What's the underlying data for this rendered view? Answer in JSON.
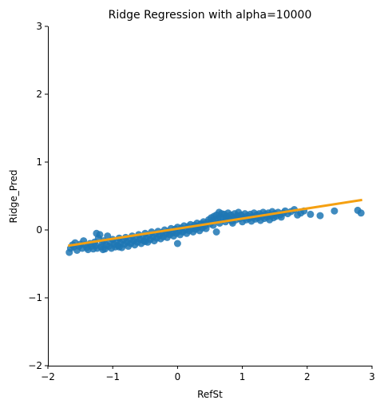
{
  "chart_data": {
    "type": "scatter",
    "title": "Ridge Regression with alpha=10000",
    "xlabel": "RefSt",
    "ylabel": "Ridge_Pred",
    "xlim": [
      -2,
      3
    ],
    "ylim": [
      -2,
      3
    ],
    "xticks": [
      -2,
      -1,
      0,
      1,
      2,
      3
    ],
    "yticks": [
      -2,
      -1,
      0,
      1,
      2,
      3
    ],
    "xtick_labels": [
      "−2",
      "−1",
      "0",
      "1",
      "2",
      "3"
    ],
    "ytick_labels": [
      "−2",
      "−1",
      "0",
      "1",
      "2",
      "3"
    ],
    "grid": false,
    "series": [
      {
        "kind": "points",
        "color": "#1f77b4",
        "points": [
          [
            -1.67,
            -0.33
          ],
          [
            -1.65,
            -0.27
          ],
          [
            -1.62,
            -0.22
          ],
          [
            -1.6,
            -0.25
          ],
          [
            -1.58,
            -0.19
          ],
          [
            -1.55,
            -0.3
          ],
          [
            -1.52,
            -0.24
          ],
          [
            -1.5,
            -0.21
          ],
          [
            -1.47,
            -0.27
          ],
          [
            -1.45,
            -0.16
          ],
          [
            -1.43,
            -0.22
          ],
          [
            -1.4,
            -0.26
          ],
          [
            -1.38,
            -0.29
          ],
          [
            -1.35,
            -0.2
          ],
          [
            -1.33,
            -0.24
          ],
          [
            -1.3,
            -0.28
          ],
          [
            -1.28,
            -0.18
          ],
          [
            -1.26,
            -0.23
          ],
          [
            -1.24,
            -0.27
          ],
          [
            -1.22,
            -0.12
          ],
          [
            -1.2,
            -0.07
          ],
          [
            -1.18,
            -0.25
          ],
          [
            -1.16,
            -0.2
          ],
          [
            -1.14,
            -0.16
          ],
          [
            -1.12,
            -0.28
          ],
          [
            -1.1,
            -0.22
          ],
          [
            -1.08,
            -0.09
          ],
          [
            -1.06,
            -0.24
          ],
          [
            -1.04,
            -0.18
          ],
          [
            -1.02,
            -0.27
          ],
          [
            -1.0,
            -0.14
          ],
          [
            -0.98,
            -0.21
          ],
          [
            -0.96,
            -0.25
          ],
          [
            -0.94,
            -0.17
          ],
          [
            -0.92,
            -0.23
          ],
          [
            -0.9,
            -0.12
          ],
          [
            -0.88,
            -0.19
          ],
          [
            -0.86,
            -0.26
          ],
          [
            -0.84,
            -0.15
          ],
          [
            -0.82,
            -0.21
          ],
          [
            -0.8,
            -0.11
          ],
          [
            -0.78,
            -0.18
          ],
          [
            -0.76,
            -0.24
          ],
          [
            -0.74,
            -0.14
          ],
          [
            -0.72,
            -0.2
          ],
          [
            -0.7,
            -0.09
          ],
          [
            -0.68,
            -0.16
          ],
          [
            -0.66,
            -0.22
          ],
          [
            -0.64,
            -0.13
          ],
          [
            -0.62,
            -0.18
          ],
          [
            -0.6,
            -0.07
          ],
          [
            -0.58,
            -0.14
          ],
          [
            -0.56,
            -0.2
          ],
          [
            -0.54,
            -0.1
          ],
          [
            -0.52,
            -0.16
          ],
          [
            -0.5,
            -0.05
          ],
          [
            -0.48,
            -0.12
          ],
          [
            -0.46,
            -0.18
          ],
          [
            -0.44,
            -0.08
          ],
          [
            -0.42,
            -0.14
          ],
          [
            -0.4,
            -0.03
          ],
          [
            -0.38,
            -0.1
          ],
          [
            -0.36,
            -0.16
          ],
          [
            -0.34,
            -0.06
          ],
          [
            -0.32,
            -0.12
          ],
          [
            -0.3,
            -0.02
          ],
          [
            -0.28,
            -0.08
          ],
          [
            -0.26,
            -0.13
          ],
          [
            -0.24,
            -0.04
          ],
          [
            -0.22,
            -0.1
          ],
          [
            -0.2,
            0.0
          ],
          [
            -0.18,
            -0.06
          ],
          [
            -0.16,
            -0.11
          ],
          [
            -0.14,
            -0.02
          ],
          [
            -0.12,
            -0.07
          ],
          [
            -0.1,
            0.02
          ],
          [
            -0.08,
            -0.04
          ],
          [
            -0.06,
            -0.09
          ],
          [
            -0.04,
            0.01
          ],
          [
            -0.02,
            -0.05
          ],
          [
            0.0,
            0.04
          ],
          [
            0.02,
            -0.02
          ],
          [
            0.04,
            -0.07
          ],
          [
            0.06,
            0.03
          ],
          [
            0.08,
            -0.03
          ],
          [
            0.1,
            0.06
          ],
          [
            0.12,
            0.0
          ],
          [
            0.14,
            -0.05
          ],
          [
            0.16,
            0.05
          ],
          [
            0.18,
            -0.01
          ],
          [
            0.2,
            0.08
          ],
          [
            0.22,
            0.02
          ],
          [
            0.24,
            -0.03
          ],
          [
            0.26,
            0.07
          ],
          [
            0.28,
            0.01
          ],
          [
            0.3,
            0.1
          ],
          [
            0.32,
            0.04
          ],
          [
            0.34,
            -0.01
          ],
          [
            0.36,
            0.09
          ],
          [
            0.38,
            0.03
          ],
          [
            0.4,
            0.12
          ],
          [
            0.42,
            0.06
          ],
          [
            0.44,
            0.02
          ],
          [
            0.46,
            0.11
          ],
          [
            0.48,
            0.15
          ],
          [
            0.5,
            0.09
          ],
          [
            0.52,
            0.18
          ],
          [
            0.54,
            0.13
          ],
          [
            0.56,
            0.2
          ],
          [
            0.58,
            0.15
          ],
          [
            0.6,
            0.22
          ],
          [
            0.62,
            0.17
          ],
          [
            0.64,
            0.26
          ],
          [
            0.66,
            0.19
          ],
          [
            0.68,
            0.24
          ],
          [
            0.7,
            0.18
          ],
          [
            0.72,
            0.23
          ],
          [
            0.74,
            0.12
          ],
          [
            0.76,
            0.2
          ],
          [
            0.78,
            0.25
          ],
          [
            0.8,
            0.16
          ],
          [
            0.82,
            0.22
          ],
          [
            0.84,
            0.13
          ],
          [
            0.86,
            0.19
          ],
          [
            0.88,
            0.24
          ],
          [
            0.9,
            0.15
          ],
          [
            0.92,
            0.21
          ],
          [
            0.94,
            0.26
          ],
          [
            0.96,
            0.17
          ],
          [
            0.98,
            0.22
          ],
          [
            1.0,
            0.12
          ],
          [
            1.02,
            0.19
          ],
          [
            1.04,
            0.24
          ],
          [
            1.06,
            0.15
          ],
          [
            1.08,
            0.21
          ],
          [
            1.1,
            0.17
          ],
          [
            1.12,
            0.23
          ],
          [
            1.14,
            0.13
          ],
          [
            1.16,
            0.19
          ],
          [
            1.18,
            0.25
          ],
          [
            1.2,
            0.16
          ],
          [
            1.22,
            0.22
          ],
          [
            1.24,
            0.18
          ],
          [
            1.26,
            0.24
          ],
          [
            1.28,
            0.14
          ],
          [
            1.3,
            0.2
          ],
          [
            1.32,
            0.26
          ],
          [
            1.34,
            0.17
          ],
          [
            1.36,
            0.23
          ],
          [
            1.38,
            0.19
          ],
          [
            1.4,
            0.25
          ],
          [
            1.42,
            0.15
          ],
          [
            1.44,
            0.21
          ],
          [
            1.46,
            0.27
          ],
          [
            1.48,
            0.18
          ],
          [
            1.5,
            0.24
          ],
          [
            1.52,
            0.2
          ],
          [
            1.55,
            0.26
          ],
          [
            1.58,
            0.22
          ],
          [
            1.6,
            0.19
          ],
          [
            1.63,
            0.25
          ],
          [
            1.66,
            0.28
          ],
          [
            1.7,
            0.24
          ],
          [
            1.75,
            0.27
          ],
          [
            1.8,
            0.3
          ],
          [
            1.85,
            0.22
          ],
          [
            1.9,
            0.25
          ],
          [
            1.95,
            0.28
          ],
          [
            2.05,
            0.23
          ],
          [
            2.2,
            0.21
          ],
          [
            2.42,
            0.28
          ],
          [
            2.78,
            0.29
          ],
          [
            2.83,
            0.25
          ],
          [
            0.0,
            -0.2
          ],
          [
            0.6,
            -0.03
          ],
          [
            0.3,
            0.05
          ],
          [
            0.55,
            0.07
          ],
          [
            0.75,
            0.16
          ],
          [
            0.65,
            0.1
          ],
          [
            0.85,
            0.1
          ],
          [
            -0.5,
            -0.17
          ],
          [
            -0.9,
            -0.25
          ],
          [
            -1.25,
            -0.05
          ],
          [
            -1.15,
            -0.29
          ],
          [
            0.4,
            0.09
          ]
        ]
      },
      {
        "kind": "fit-line",
        "color": "#f5a011",
        "x": [
          -1.67,
          2.83
        ],
        "y": [
          -0.23,
          0.44
        ]
      }
    ]
  }
}
